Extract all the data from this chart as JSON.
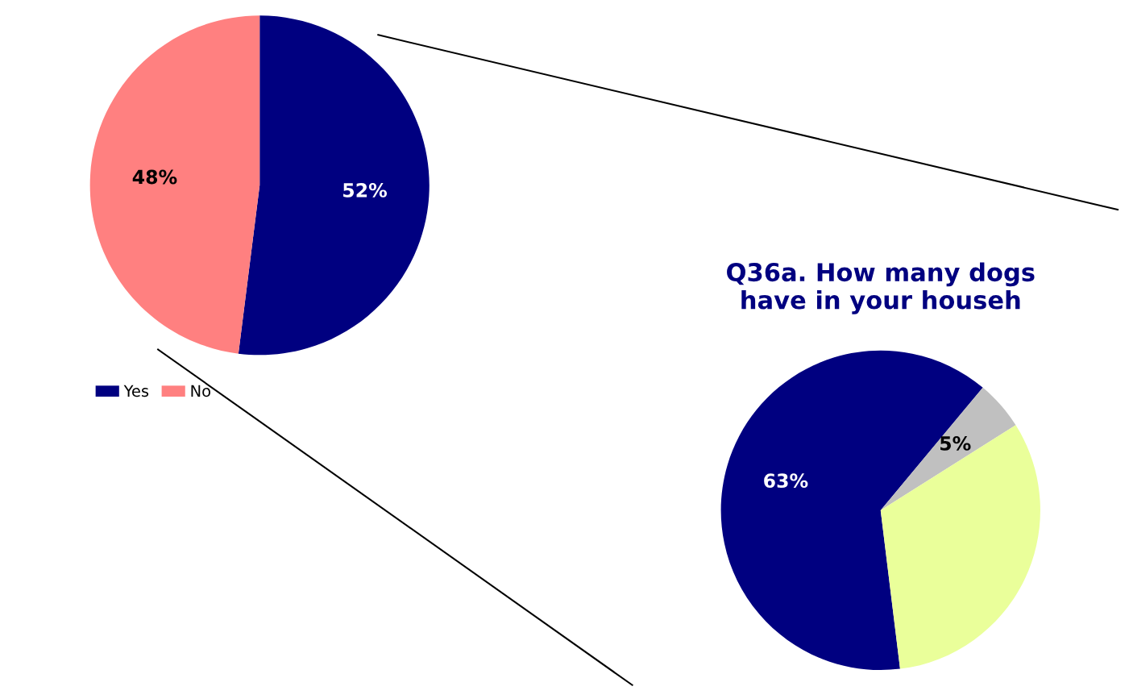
{
  "chart_data": [
    {
      "type": "pie",
      "categories": [
        "Yes",
        "No"
      ],
      "values": [
        52,
        48
      ],
      "colors": [
        "#000080",
        "#ff8080"
      ],
      "value_labels": [
        "52%",
        "48%"
      ],
      "legend": "bottom left"
    },
    {
      "type": "pie",
      "title": "Q36a. How many dogs\nhave in your househ",
      "categories": [
        null,
        null,
        null
      ],
      "values": [
        63,
        5,
        32
      ],
      "colors": [
        "#000080",
        "#c0c0c0",
        "#eaff9a"
      ],
      "value_labels": [
        "63%",
        "5%",
        null
      ]
    }
  ]
}
